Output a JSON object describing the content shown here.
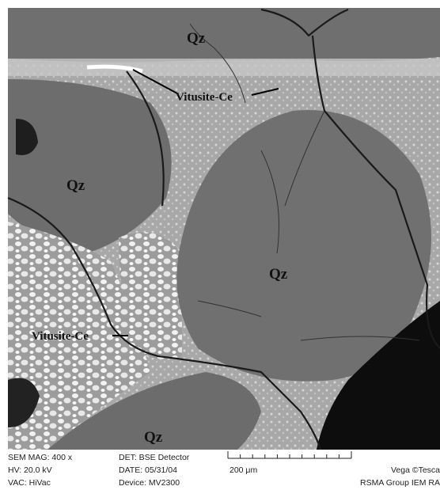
{
  "labels": [
    "Qz",
    "Vitusite-Ce",
    "Qz",
    "Qz",
    "Vitusite-Ce",
    "Qz"
  ],
  "info": {
    "sem_mag": "SEM MAG: 400 x",
    "hv": "HV: 20.0 kV",
    "vac": "VAC: HiVac",
    "det": "DET: BSE Detector",
    "date": "DATE: 05/31/04",
    "device": "Device: MV2300",
    "scale": "200 μm",
    "vendor": "Vega ©Tesca",
    "group": "RSMA Group IEM RA"
  }
}
